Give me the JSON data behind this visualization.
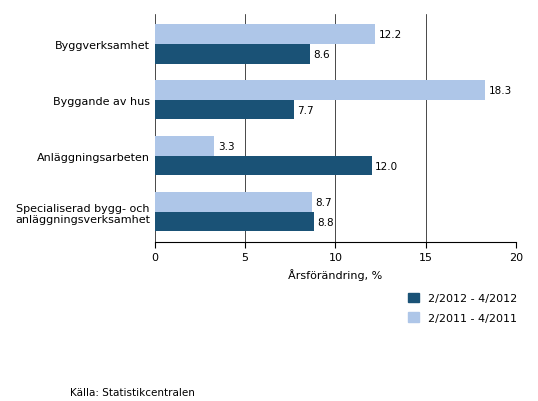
{
  "categories": [
    "Byggverksamhet",
    "Byggande av hus",
    "Anläggningsarbeten",
    "Specialiserad bygg- och\nanläggningsverksamhet"
  ],
  "series1_label": "2/2012 - 4/2012",
  "series2_label": "2/2011 - 4/2011",
  "series1_values": [
    8.6,
    7.7,
    12.0,
    8.8
  ],
  "series2_values": [
    12.2,
    18.3,
    3.3,
    8.7
  ],
  "series1_color": "#1a5276",
  "series2_color": "#aec6e8",
  "xlabel": "Årsförändring, %",
  "xlim": [
    0,
    20
  ],
  "xticks": [
    0,
    5,
    10,
    15,
    20
  ],
  "source_text": "Källa: Statistikcentralen",
  "bar_height": 0.35,
  "value_fontsize": 7.5,
  "label_fontsize": 8,
  "tick_fontsize": 8
}
